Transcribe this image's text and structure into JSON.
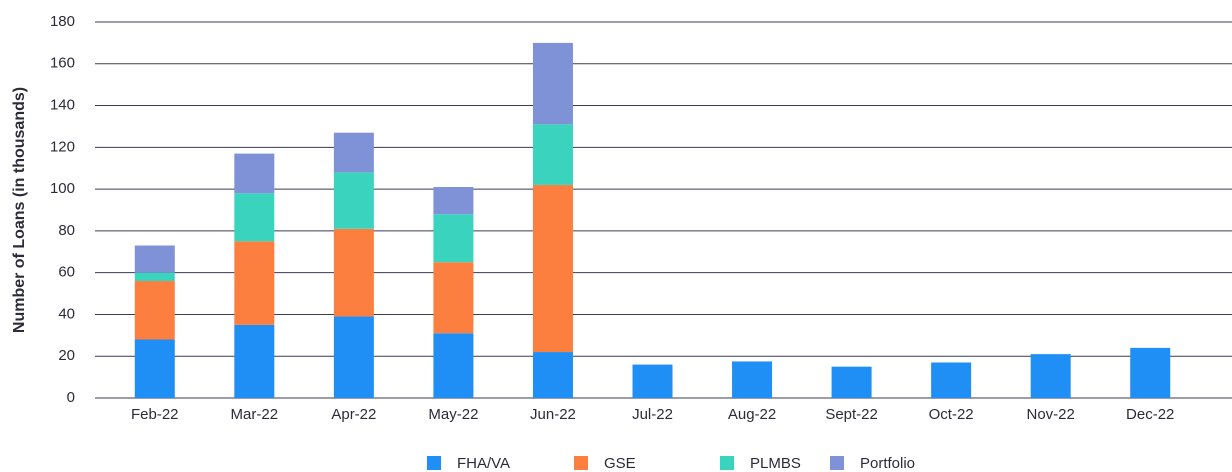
{
  "chart_data": {
    "type": "stacked_bar",
    "y_label": "Number of Loans (in thousands)",
    "categories": [
      "Feb-22",
      "Mar-22",
      "Apr-22",
      "May-22",
      "Jun-22",
      "Jul-22",
      "Aug-22",
      "Sept-22",
      "Oct-22",
      "Nov-22",
      "Dec-22"
    ],
    "series": [
      {
        "name": "FHA/VA",
        "color": "#1f8ff5",
        "values": [
          28,
          35,
          39,
          31,
          22,
          16,
          17.5,
          15,
          17,
          21,
          24
        ]
      },
      {
        "name": "GSE",
        "color": "#fd7f3f",
        "values": [
          28,
          40,
          42,
          34,
          80,
          null,
          null,
          null,
          null,
          null,
          null
        ]
      },
      {
        "name": "PLMBS",
        "color": "#3ad4be",
        "values": [
          4,
          23,
          27,
          23,
          29,
          null,
          null,
          null,
          null,
          null,
          null
        ]
      },
      {
        "name": "Portfolio",
        "color": "#7f92d8",
        "values": [
          13,
          19,
          19,
          13,
          39,
          null,
          null,
          null,
          null,
          null,
          null
        ]
      }
    ],
    "ylim": [
      0,
      180
    ],
    "yticks": [
      0,
      20,
      40,
      60,
      80,
      100,
      120,
      140,
      160,
      180
    ],
    "grid": true,
    "legend": "bottom"
  }
}
